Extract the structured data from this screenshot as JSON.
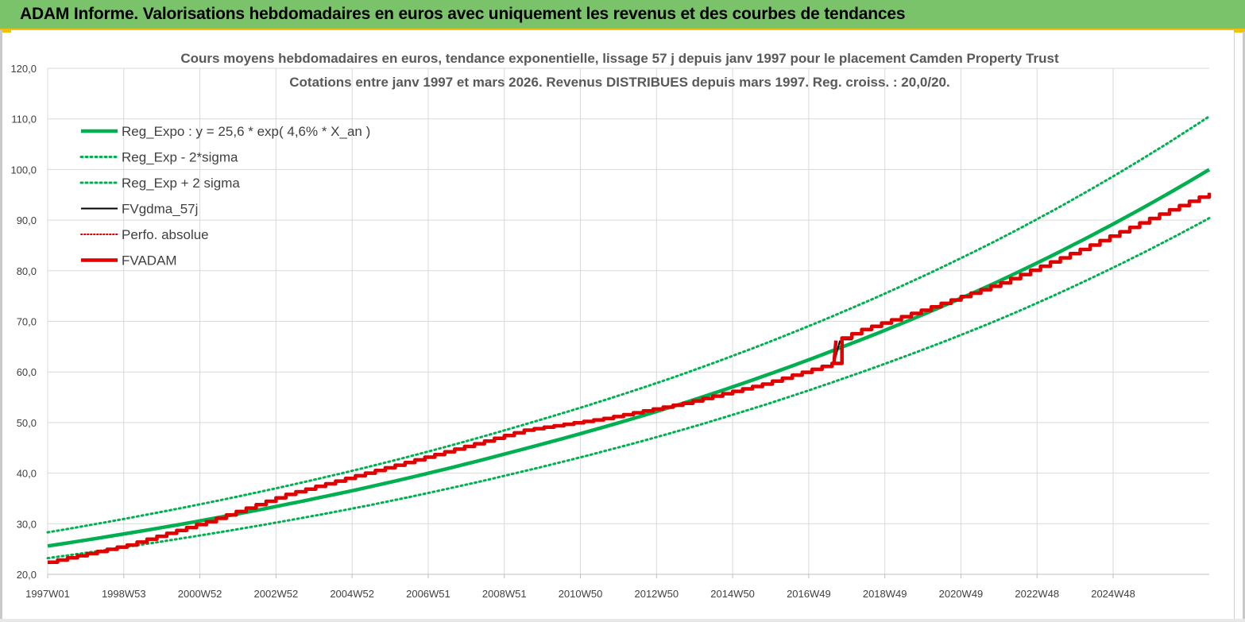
{
  "header": {
    "title": "ADAM Informe. Valorisations hebdomadaires en euros avec uniquement les revenus et des courbes de tendances"
  },
  "colors": {
    "banner": "#7ac36a",
    "accent": "#f2c200",
    "reg_expo": "#00b050",
    "fvgdma": "#000000",
    "fvadam": "#e00000",
    "grid": "#d9d9d9"
  },
  "chart_data": {
    "type": "line",
    "title": "Cours moyens hebdomadaires en euros, tendance exponentielle, lissage 57 j depuis janv 1997 pour le placement Camden Property Trust",
    "subtitle": "Cotations entre janv 1997 et mars 2026. Revenus DISTRIBUES depuis mars 1997. Reg. croiss. : 20,0/20.",
    "ylim": [
      20,
      120
    ],
    "y_ticks": [
      "20,0",
      "30,0",
      "40,0",
      "50,0",
      "60,0",
      "70,0",
      "80,0",
      "90,0",
      "100,0",
      "110,0",
      "120,0"
    ],
    "x_ticks": [
      "1997W01",
      "1998W53",
      "2000W52",
      "2002W52",
      "2004W52",
      "2006W51",
      "2008W51",
      "2010W50",
      "2012W50",
      "2014W50",
      "2016W49",
      "2018W49",
      "2020W49",
      "2022W48",
      "2024W48"
    ],
    "x_range_years": [
      1997.0,
      2026.25
    ],
    "grid": true,
    "legend_position": "top-left",
    "series": [
      {
        "name": "Reg_Expo : y = 25,6 * exp( 4,6% *  X_an )",
        "style": "solid-thick",
        "color": "#00b050",
        "x": [
          1997.0,
          2001.0,
          2005.0,
          2009.0,
          2013.0,
          2017.0,
          2021.0,
          2026.25
        ],
        "values": [
          25.6,
          30.8,
          37.1,
          44.8,
          53.8,
          64.9,
          78.1,
          100.0
        ]
      },
      {
        "name": "Reg_Exp - 2*sigma",
        "style": "dotted",
        "color": "#00b050",
        "x": [
          1997.0,
          2001.0,
          2005.0,
          2009.0,
          2013.0,
          2017.0,
          2021.0,
          2026.25
        ],
        "values": [
          23.2,
          27.9,
          33.5,
          40.4,
          48.6,
          58.6,
          70.5,
          90.4
        ]
      },
      {
        "name": "Reg_Exp + 2 sigma",
        "style": "dotted",
        "color": "#00b050",
        "x": [
          1997.0,
          2001.0,
          2005.0,
          2009.0,
          2013.0,
          2017.0,
          2021.0,
          2026.25
        ],
        "values": [
          28.3,
          34.1,
          41.1,
          49.6,
          59.6,
          71.8,
          86.4,
          110.5
        ]
      },
      {
        "name": "FVgdma_57j",
        "style": "solid",
        "color": "#000000",
        "x": [
          1997.0,
          1999.0,
          2001.0,
          2003.0,
          2005.0,
          2007.0,
          2009.0,
          2011.0,
          2013.0,
          2015.0,
          2016.8,
          2016.95,
          2017.5,
          2019.0,
          2021.0,
          2023.0,
          2025.0,
          2026.25
        ],
        "values": [
          22.4,
          25.8,
          30.4,
          35.8,
          40.0,
          44.2,
          48.5,
          50.8,
          53.8,
          57.6,
          61.8,
          66.2,
          68.4,
          72.2,
          77.6,
          84.2,
          91.2,
          95.4
        ]
      },
      {
        "name": "Perfo. absolue",
        "style": "dotted",
        "color": "#e00000",
        "x": [],
        "values": []
      },
      {
        "name": "FVADAM",
        "style": "solid-thick",
        "color": "#e00000",
        "x": [
          1997.0,
          1999.0,
          2001.0,
          2003.0,
          2005.0,
          2007.0,
          2009.0,
          2011.0,
          2013.0,
          2015.0,
          2016.8,
          2016.85,
          2017.5,
          2019.0,
          2021.0,
          2023.0,
          2025.0,
          2026.25
        ],
        "values": [
          22.4,
          25.8,
          30.4,
          35.8,
          40.0,
          44.2,
          48.5,
          50.8,
          53.8,
          57.6,
          61.8,
          66.2,
          68.4,
          72.2,
          77.6,
          84.2,
          91.2,
          95.4
        ]
      }
    ]
  }
}
